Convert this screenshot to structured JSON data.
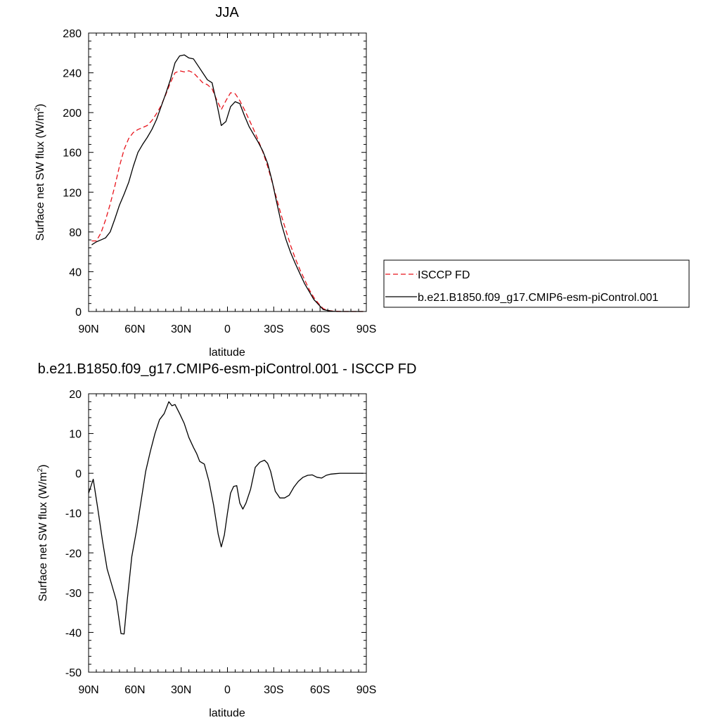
{
  "chart_data": [
    {
      "type": "line",
      "title": "JJA",
      "xlabel": "latitude",
      "ylabel": "Surface net SW flux (W/m",
      "ylabel_sup": "2",
      "ylabel_end": ")",
      "xlim": [
        90,
        -90
      ],
      "ylim": [
        0,
        280
      ],
      "x_ticks": [
        90,
        60,
        30,
        0,
        -30,
        -60,
        -90
      ],
      "x_tick_labels": [
        "90N",
        "60N",
        "30N",
        "0",
        "30S",
        "60S",
        "90S"
      ],
      "y_ticks": [
        0,
        40,
        80,
        120,
        160,
        200,
        240,
        280
      ],
      "y_tick_labels": [
        "0",
        "40",
        "80",
        "120",
        "160",
        "200",
        "240",
        "280"
      ],
      "grid": false,
      "legend_position": "right",
      "series": [
        {
          "name": "ISCCP FD",
          "color": "#e8141c",
          "dash": "dashed",
          "x": [
            88,
            85,
            82,
            79,
            76,
            73,
            70,
            67,
            64,
            61,
            58,
            55,
            52,
            49,
            46,
            43,
            40,
            37,
            34,
            31,
            28,
            25,
            22,
            19,
            16,
            13,
            10,
            7,
            4,
            1,
            -2,
            -5,
            -8,
            -11,
            -14,
            -17,
            -20,
            -23,
            -26,
            -29,
            -32,
            -35,
            -38,
            -41,
            -44,
            -47,
            -50,
            -53,
            -56,
            -59,
            -62,
            -65,
            -68,
            -71,
            -74,
            -77,
            -80,
            -83,
            -86,
            -88
          ],
          "values": [
            71,
            71,
            79,
            92,
            108,
            126,
            146,
            163,
            174,
            180,
            183,
            185,
            187,
            192,
            199,
            207,
            218,
            230,
            240,
            242,
            241,
            242,
            240,
            235,
            230,
            228,
            224,
            213,
            203,
            212,
            220,
            219,
            212,
            203,
            193,
            183,
            172,
            160,
            146,
            130,
            113,
            96,
            81,
            66,
            53,
            42,
            32,
            22,
            14,
            8,
            3,
            1,
            0.5,
            0.2,
            0,
            0,
            0,
            0,
            0,
            0
          ]
        },
        {
          "name": "b.e21.B1850.f09_g17.CMIP6-esm-piControl.001",
          "color": "#000000",
          "dash": "solid",
          "x": [
            88,
            85,
            82,
            79,
            76,
            73,
            70,
            67,
            64,
            61,
            58,
            55,
            52,
            49,
            46,
            43,
            40,
            37,
            34,
            31,
            28,
            25,
            22,
            19,
            16,
            13,
            10,
            7,
            4,
            1,
            -2,
            -5,
            -8,
            -11,
            -14,
            -17,
            -20,
            -23,
            -26,
            -29,
            -32,
            -35,
            -38,
            -41,
            -44,
            -47,
            -50,
            -53,
            -56,
            -59,
            -62,
            -65,
            -68,
            -71,
            -74,
            -77,
            -80,
            -83,
            -86,
            -88
          ],
          "values": [
            67,
            70,
            72,
            74,
            80,
            93,
            107,
            118,
            130,
            146,
            160,
            168,
            175,
            183,
            193,
            206,
            219,
            233,
            250,
            257,
            258,
            255,
            254,
            247,
            240,
            233,
            230,
            210,
            187,
            191,
            206,
            211,
            209,
            197,
            186,
            178,
            170,
            161,
            149,
            131,
            109,
            88,
            72,
            59,
            48,
            38,
            28,
            20,
            12,
            7,
            2,
            1,
            0.3,
            0,
            0,
            0,
            0,
            0,
            0,
            0
          ]
        }
      ]
    },
    {
      "type": "line",
      "title": "b.e21.B1850.f09_g17.CMIP6-esm-piControl.001 - ISCCP FD",
      "xlabel": "latitude",
      "ylabel": "Surface net SW flux (W/m",
      "ylabel_sup": "2",
      "ylabel_end": ")",
      "xlim": [
        90,
        -90
      ],
      "ylim": [
        -50,
        20
      ],
      "x_ticks": [
        90,
        60,
        30,
        0,
        -30,
        -60,
        -90
      ],
      "x_tick_labels": [
        "90N",
        "60N",
        "30N",
        "0",
        "30S",
        "60S",
        "90S"
      ],
      "y_ticks": [
        -50,
        -40,
        -30,
        -20,
        -10,
        0,
        10,
        20
      ],
      "y_tick_labels": [
        "-50",
        "-40",
        "-30",
        "-20",
        "-10",
        "0",
        "10",
        "20"
      ],
      "grid": false,
      "series": [
        {
          "color": "#000000",
          "dash": "solid",
          "x": [
            90,
            87,
            84,
            81,
            78,
            75,
            72,
            69,
            67,
            65,
            62,
            59,
            56,
            53,
            50,
            47,
            44,
            41,
            38,
            36,
            34,
            31,
            28,
            25,
            22,
            20,
            18,
            15,
            12,
            9,
            6,
            4,
            2,
            0,
            -2,
            -4,
            -6,
            -8,
            -10,
            -12,
            -15,
            -18,
            -21,
            -24,
            -26,
            -28,
            -31,
            -34,
            -37,
            -40,
            -43,
            -46,
            -49,
            -52,
            -55,
            -58,
            -61,
            -64,
            -67,
            -70,
            -73,
            -76,
            -80,
            -85,
            -88
          ],
          "values": [
            -5,
            -1.5,
            -9,
            -17,
            -24,
            -28,
            -32,
            -40.3,
            -40.4,
            -32,
            -21,
            -14.5,
            -7,
            0.5,
            5.5,
            10,
            13.5,
            15,
            18,
            17,
            17.3,
            15,
            12.5,
            9,
            6.5,
            5,
            3,
            2.3,
            -2,
            -8,
            -15.3,
            -18.5,
            -15.5,
            -10,
            -5,
            -3.3,
            -3.1,
            -7.5,
            -9,
            -7.5,
            -4,
            1.5,
            2.8,
            3.3,
            2.5,
            0.5,
            -4.5,
            -6.2,
            -6.2,
            -5.5,
            -3.5,
            -2,
            -1,
            -0.5,
            -0.4,
            -1,
            -1.2,
            -0.5,
            -0.2,
            -0.1,
            0,
            0,
            0,
            0,
            0
          ]
        }
      ]
    }
  ]
}
